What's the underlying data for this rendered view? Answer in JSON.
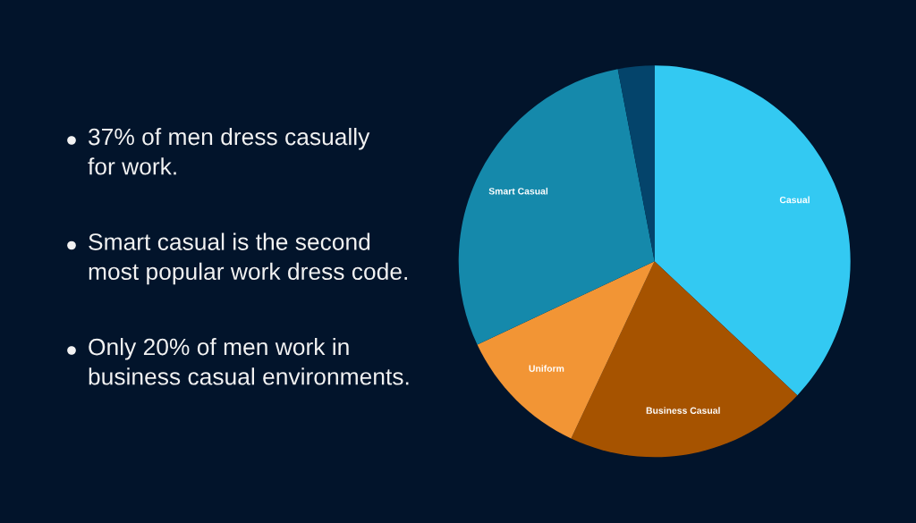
{
  "chart_data": {
    "type": "pie",
    "categories": [
      "Casual",
      "Business Casual",
      "Uniform",
      "Smart Casual",
      null
    ],
    "values": [
      37,
      20,
      11,
      29,
      3
    ],
    "colors": [
      "#33c9f2",
      "#a65300",
      "#f29535",
      "#1589ab",
      "#04446b"
    ],
    "annotations": [
      "37% of men dress casually\nfor work.",
      "Smart casual is the second\nmost popular work dress code.",
      "Only 20% of men work in\nbusiness casual environments."
    ]
  }
}
